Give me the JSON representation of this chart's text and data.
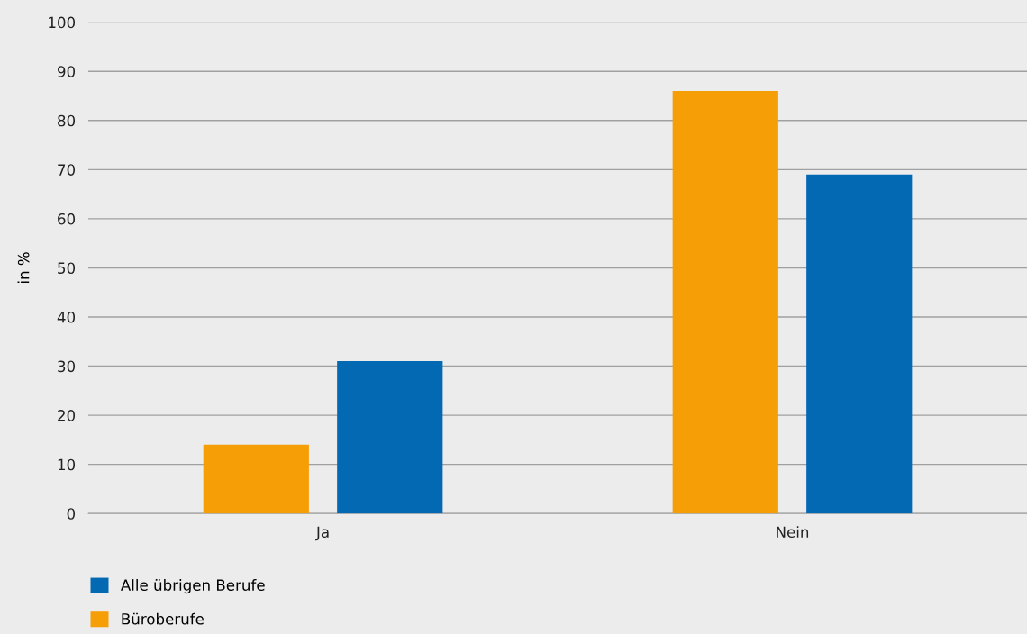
{
  "chart_data": {
    "type": "bar",
    "ylabel": "in %",
    "categories": [
      "Ja",
      "Nein"
    ],
    "series": [
      {
        "name": "Büroberufe",
        "color": "#f59e05",
        "values": [
          14,
          86
        ]
      },
      {
        "name": "Alle übrigen Berufe",
        "color": "#0469b3",
        "values": [
          31,
          69
        ]
      }
    ],
    "ylim": [
      0,
      100
    ],
    "yticks": [
      0,
      10,
      20,
      30,
      40,
      50,
      60,
      70,
      80,
      90,
      100
    ],
    "grid": "y",
    "legend": "bottom left"
  }
}
